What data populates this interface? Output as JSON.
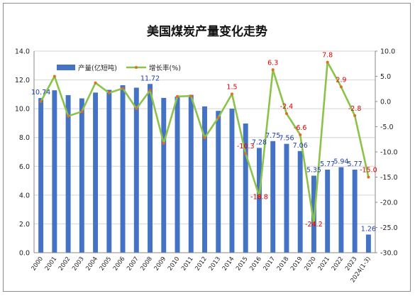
{
  "chart_data": {
    "type": "bar",
    "title": "美国煤炭产量变化走势",
    "categories": [
      "2000",
      "2001",
      "2002",
      "2003",
      "2004",
      "2005",
      "2006",
      "2007",
      "2008",
      "2009",
      "2010",
      "2011",
      "2012",
      "2013",
      "2014",
      "2015",
      "2016",
      "2017",
      "2018",
      "2019",
      "2020",
      "2021",
      "2022",
      "2023",
      "2024(1-3)"
    ],
    "series": [
      {
        "name": "产量(亿短吨)",
        "type": "bar",
        "axis": "left",
        "color": "#4472c4",
        "values": [
          10.74,
          11.28,
          10.94,
          10.72,
          11.12,
          11.31,
          11.63,
          11.46,
          11.72,
          10.75,
          10.84,
          10.96,
          10.16,
          9.85,
          10.0,
          8.97,
          7.28,
          7.75,
          7.56,
          7.06,
          5.35,
          5.77,
          5.94,
          5.77,
          1.26
        ],
        "labels": {
          "0": "10.74",
          "8": "11.72",
          "16": "7.28",
          "17": "7.75",
          "18": "7.56",
          "19": "7.06",
          "20": "5.35",
          "21": "5.77",
          "22": "5.94",
          "23": "5.77",
          "24": "1.26"
        }
      },
      {
        "name": "增长率(%)",
        "type": "line",
        "axis": "right",
        "color": "#8bc34a",
        "values": [
          0.0,
          5.0,
          -2.9,
          -2.0,
          3.7,
          1.7,
          2.6,
          -1.4,
          2.2,
          -8.3,
          1.0,
          1.1,
          -7.2,
          -3.2,
          1.5,
          -10.3,
          -18.8,
          6.3,
          -2.4,
          -6.6,
          -24.2,
          7.8,
          2.9,
          -2.8,
          -15.0
        ],
        "labels": {
          "14": "1.5",
          "15": "-10.3",
          "16": "-18.8",
          "17": "6.3",
          "18": "-2.4",
          "19": "-6.6",
          "20": "-24.2",
          "21": "7.8",
          "22": "2.9",
          "23": "-2.8",
          "24": "-15.0"
        }
      }
    ],
    "y_left": {
      "min": 0,
      "max": 14,
      "step": 2,
      "tick_labels": [
        "0.0",
        "2.0",
        "4.0",
        "6.0",
        "8.0",
        "10.0",
        "12.0",
        "14.0"
      ]
    },
    "y_right": {
      "min": -30,
      "max": 10,
      "step": 5,
      "tick_labels": [
        "-30.0",
        "-25.0",
        "-20.0",
        "-15.0",
        "-10.0",
        "-5.0",
        "0.0",
        "5.0",
        "10.0"
      ]
    },
    "grid": true,
    "legend": "top-left"
  }
}
